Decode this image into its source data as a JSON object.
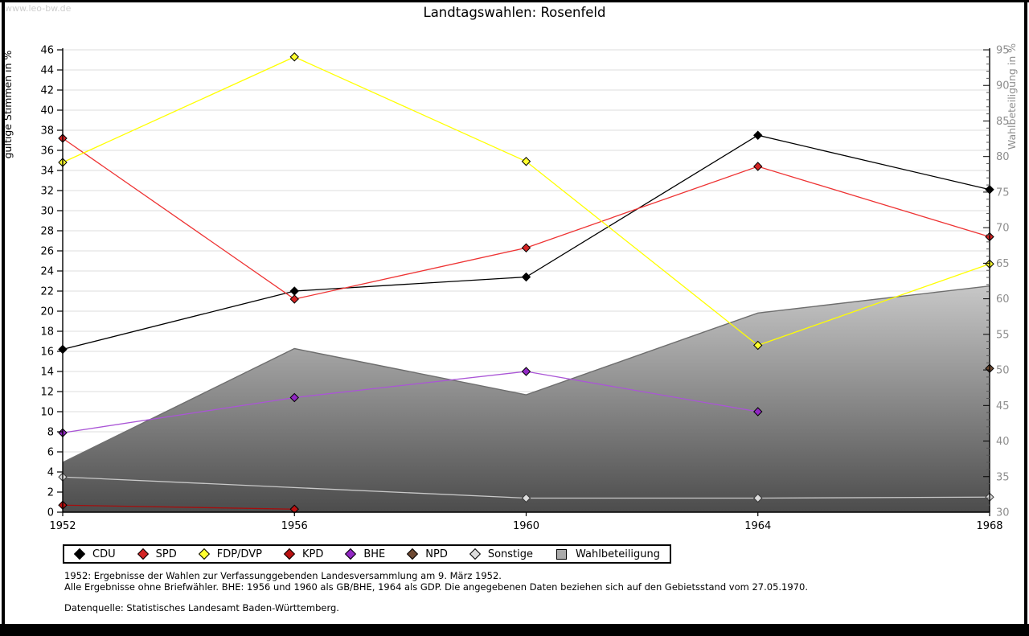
{
  "watermark": "www.leo-bw.de",
  "title": "Landtagswahlen: Rosenfeld",
  "footnotes": {
    "line1": "1952: Ergebnisse der Wahlen zur Verfassunggebenden Landesversammlung am 9. März 1952.",
    "line2": "Alle Ergebnisse ohne Briefwähler. BHE: 1956 und 1960 als GB/BHE, 1964 als GDP. Die angegebenen Daten beziehen sich auf den Gebietsstand vom 27.05.1970.",
    "source": "Datenquelle: Statistisches Landesamt Baden-Württemberg."
  },
  "chart_data": {
    "type": "line",
    "x": [
      1952,
      1956,
      1960,
      1964,
      1968
    ],
    "left_axis": {
      "label": "gültige Stimmen in %",
      "min": 0,
      "max": 46,
      "tick_step": 2,
      "ticks": [
        0,
        2,
        4,
        6,
        8,
        10,
        12,
        14,
        16,
        18,
        20,
        22,
        24,
        26,
        28,
        30,
        32,
        34,
        36,
        38,
        40,
        42,
        44,
        46
      ],
      "color": "#000000"
    },
    "right_axis": {
      "label": "Wahlbeteiligung in %",
      "min": 30,
      "max": 95,
      "tick_step": 5,
      "minor_step": 1,
      "ticks": [
        30,
        35,
        40,
        45,
        50,
        55,
        60,
        65,
        70,
        75,
        80,
        85,
        90,
        95
      ],
      "color": "#8e8e8e"
    },
    "grid": true,
    "legend_position": "bottom",
    "area_series": {
      "name": "Wahlbeteiligung",
      "axis": "right",
      "x": [
        1952,
        1956,
        1960,
        1964,
        1968
      ],
      "values": [
        37.0,
        53.0,
        46.5,
        58.0,
        61.8
      ],
      "gradient_top": "#c7c7c7",
      "gradient_bottom": "#4c4c4c",
      "edge_color": "#6e6e6e",
      "legend_swatch": "#aaaaaa"
    },
    "series": [
      {
        "name": "CDU",
        "axis": "left",
        "color": "#000000",
        "marker_fill": "#000000",
        "marker_stroke": "#000000",
        "x": [
          1952,
          1956,
          1960,
          1964,
          1968
        ],
        "values": [
          16.2,
          22.0,
          23.4,
          37.5,
          32.1
        ]
      },
      {
        "name": "SPD",
        "axis": "left",
        "color": "#ee3333",
        "marker_fill": "#d42424",
        "marker_stroke": "#000000",
        "x": [
          1952,
          1956,
          1960,
          1964,
          1968
        ],
        "values": [
          37.2,
          21.2,
          26.3,
          34.4,
          27.4
        ]
      },
      {
        "name": "FDP/DVP",
        "axis": "left",
        "color": "#ffff00",
        "marker_fill": "#ffff2e",
        "marker_stroke": "#000000",
        "x": [
          1952,
          1956,
          1960,
          1964,
          1968
        ],
        "values": [
          34.8,
          45.3,
          34.9,
          16.6,
          24.7
        ]
      },
      {
        "name": "KPD",
        "axis": "left",
        "color": "#a50d0d",
        "marker_fill": "#bb1111",
        "marker_stroke": "#000000",
        "x": [
          1952,
          1956
        ],
        "values": [
          0.7,
          0.3
        ]
      },
      {
        "name": "BHE",
        "axis": "left",
        "color": "#aa55d6",
        "marker_fill": "#9227c4",
        "marker_stroke": "#000000",
        "x": [
          1952,
          1956,
          1960,
          1964
        ],
        "values": [
          7.9,
          11.4,
          14.0,
          10.0
        ]
      },
      {
        "name": "NPD",
        "axis": "left",
        "color": "#6f4a32",
        "marker_fill": "#6f4a32",
        "marker_stroke": "#000000",
        "x": [
          1968
        ],
        "values": [
          14.3
        ]
      },
      {
        "name": "Sonstige",
        "axis": "left",
        "color": "#c9c9c9",
        "marker_fill": "#dcdcdc",
        "marker_stroke": "#3a3a3a",
        "x": [
          1952,
          1960,
          1964,
          1968
        ],
        "values": [
          3.5,
          1.4,
          1.4,
          1.5
        ]
      }
    ]
  }
}
